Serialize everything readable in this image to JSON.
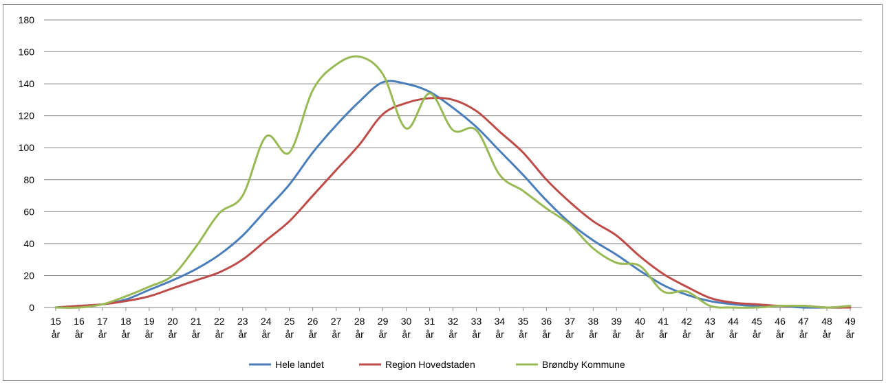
{
  "chart_data": {
    "type": "line",
    "title": "",
    "xlabel": "",
    "ylabel": "",
    "ylim": [
      0,
      180
    ],
    "yticks": [
      "0",
      "20",
      "40",
      "60",
      "80",
      "100",
      "120",
      "140",
      "160",
      "180"
    ],
    "grid": true,
    "legend_position": "bottom",
    "categories": [
      [
        "15",
        "år"
      ],
      [
        "16",
        "år"
      ],
      [
        "17",
        "år"
      ],
      [
        "18",
        "år"
      ],
      [
        "19",
        "år"
      ],
      [
        "20",
        "år"
      ],
      [
        "21",
        "år"
      ],
      [
        "22",
        "år"
      ],
      [
        "23",
        "år"
      ],
      [
        "24",
        "år"
      ],
      [
        "25",
        "år"
      ],
      [
        "26",
        "år"
      ],
      [
        "27",
        "år"
      ],
      [
        "28",
        "år"
      ],
      [
        "29",
        "år"
      ],
      [
        "30",
        "år"
      ],
      [
        "31",
        "år"
      ],
      [
        "32",
        "år"
      ],
      [
        "33",
        "år"
      ],
      [
        "34",
        "år"
      ],
      [
        "35",
        "år"
      ],
      [
        "36",
        "år"
      ],
      [
        "37",
        "år"
      ],
      [
        "38",
        "år"
      ],
      [
        "39",
        "år"
      ],
      [
        "40",
        "år"
      ],
      [
        "41",
        "år"
      ],
      [
        "42",
        "år"
      ],
      [
        "43",
        "år"
      ],
      [
        "44",
        "år"
      ],
      [
        "45",
        "år"
      ],
      [
        "46",
        "år"
      ],
      [
        "47",
        "år"
      ],
      [
        "48",
        "år"
      ],
      [
        "49",
        "år"
      ]
    ],
    "series": [
      {
        "name": "Hele landet",
        "color": "#4a7ebb",
        "values": [
          0,
          1,
          2,
          5,
          11,
          17,
          24,
          33,
          45,
          61,
          77,
          97,
          114,
          129,
          141,
          140,
          135,
          125,
          113,
          98,
          83,
          67,
          53,
          42,
          33,
          23,
          14,
          8,
          4,
          2,
          1,
          1,
          0,
          0,
          0
        ]
      },
      {
        "name": "Region Hovedstaden",
        "color": "#be4b48",
        "values": [
          0,
          1,
          2,
          4,
          7,
          12,
          17,
          22,
          30,
          42,
          54,
          70,
          86,
          102,
          121,
          128,
          131,
          130,
          123,
          110,
          97,
          80,
          66,
          54,
          45,
          32,
          21,
          13,
          6,
          3,
          2,
          1,
          1,
          0,
          0
        ]
      },
      {
        "name": "Brøndby Kommune",
        "color": "#98b954",
        "values": [
          0,
          0,
          2,
          7,
          13,
          20,
          38,
          59,
          70,
          107,
          97,
          136,
          152,
          157,
          146,
          112,
          134,
          111,
          111,
          83,
          73,
          62,
          52,
          37,
          28,
          26,
          10,
          10,
          1,
          0,
          0,
          1,
          1,
          0,
          1
        ]
      }
    ]
  }
}
